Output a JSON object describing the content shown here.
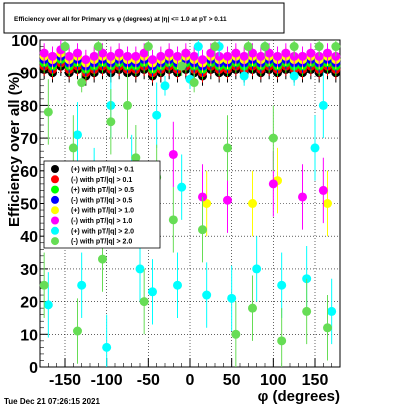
{
  "title": "Efficiency over all for Primary vs φ (degrees) at |η| <= 1.0 at pT > 0.11",
  "footer": "Tue Dec 21 07:26:15 2021",
  "chart_data": {
    "type": "scatter",
    "xlabel": "φ (degrees)",
    "ylabel": "Efficiency over all (%)",
    "xlim": [
      -180,
      180
    ],
    "ylim": [
      0,
      100
    ],
    "xticks": [
      -150,
      -100,
      -50,
      0,
      50,
      100,
      150
    ],
    "yticks": [
      0,
      10,
      20,
      30,
      40,
      50,
      60,
      70,
      80,
      90,
      100
    ],
    "grid": true,
    "legend_position": "left-middle",
    "series": [
      {
        "name": "(+) with pT/|q| > 0.1",
        "color": "#000000",
        "x": [
          -175,
          -165,
          -155,
          -145,
          -135,
          -125,
          -115,
          -105,
          -95,
          -85,
          -75,
          -65,
          -55,
          -45,
          -35,
          -25,
          -15,
          -5,
          5,
          15,
          25,
          35,
          45,
          55,
          65,
          75,
          85,
          95,
          105,
          115,
          125,
          135,
          145,
          155,
          165,
          175
        ],
        "y": [
          91,
          90,
          92,
          90,
          91,
          89,
          90,
          91,
          90,
          91,
          90,
          90,
          91,
          89,
          90,
          91,
          90,
          91,
          90,
          89,
          91,
          90,
          90,
          91,
          90,
          91,
          90,
          91,
          90,
          91,
          90,
          90,
          91,
          90,
          91,
          90
        ]
      },
      {
        "name": "(-) with pT/|q| > 0.1",
        "color": "#ff0000",
        "x": [
          -175,
          -165,
          -155,
          -145,
          -135,
          -125,
          -115,
          -105,
          -95,
          -85,
          -75,
          -65,
          -55,
          -45,
          -35,
          -25,
          -15,
          -5,
          5,
          15,
          25,
          35,
          45,
          55,
          65,
          75,
          85,
          95,
          105,
          115,
          125,
          135,
          145,
          155,
          165,
          175
        ],
        "y": [
          92,
          91,
          93,
          91,
          92,
          90,
          91,
          92,
          91,
          92,
          91,
          91,
          92,
          90,
          91,
          92,
          91,
          92,
          91,
          90,
          92,
          91,
          91,
          92,
          91,
          92,
          91,
          92,
          91,
          92,
          91,
          91,
          92,
          91,
          92,
          91
        ]
      },
      {
        "name": "(+) with pT/|q| > 0.5",
        "color": "#00ff00",
        "x": [
          -175,
          -165,
          -155,
          -145,
          -135,
          -125,
          -115,
          -105,
          -95,
          -85,
          -75,
          -65,
          -55,
          -45,
          -35,
          -25,
          -15,
          -5,
          5,
          15,
          25,
          35,
          45,
          55,
          65,
          75,
          85,
          95,
          105,
          115,
          125,
          135,
          145,
          155,
          165,
          175
        ],
        "y": [
          93,
          92,
          94,
          92,
          93,
          91,
          92,
          93,
          92,
          93,
          92,
          92,
          93,
          91,
          92,
          93,
          92,
          93,
          92,
          91,
          93,
          92,
          92,
          93,
          92,
          93,
          92,
          93,
          92,
          93,
          92,
          92,
          93,
          92,
          93,
          92
        ]
      },
      {
        "name": "(-) with pT/|q| > 0.5",
        "color": "#0000ff",
        "x": [
          -175,
          -165,
          -155,
          -145,
          -135,
          -125,
          -115,
          -105,
          -95,
          -85,
          -75,
          -65,
          -55,
          -45,
          -35,
          -25,
          -15,
          -5,
          5,
          15,
          25,
          35,
          45,
          55,
          65,
          75,
          85,
          95,
          105,
          115,
          125,
          135,
          145,
          155,
          165,
          175
        ],
        "y": [
          94,
          93,
          95,
          93,
          94,
          92,
          93,
          94,
          93,
          94,
          93,
          93,
          94,
          92,
          93,
          94,
          93,
          94,
          93,
          92,
          94,
          93,
          93,
          94,
          93,
          94,
          93,
          94,
          93,
          94,
          93,
          93,
          94,
          93,
          94,
          93
        ]
      },
      {
        "name": "(+) with pT/|q| > 1.0",
        "color": "#ffff00",
        "x": [
          -175,
          -165,
          -155,
          -145,
          -135,
          -125,
          -115,
          -105,
          -95,
          -85,
          -75,
          -65,
          -55,
          -45,
          -35,
          -25,
          -15,
          -5,
          5,
          15,
          25,
          35,
          45,
          55,
          65,
          75,
          85,
          95,
          105,
          115,
          125,
          135,
          145,
          155,
          165,
          175,
          20,
          75,
          105,
          165
        ],
        "y": [
          95,
          94,
          96,
          94,
          95,
          93,
          94,
          95,
          94,
          95,
          94,
          94,
          95,
          93,
          94,
          95,
          94,
          95,
          94,
          93,
          95,
          94,
          94,
          95,
          94,
          95,
          94,
          95,
          94,
          95,
          94,
          94,
          95,
          94,
          95,
          94,
          50,
          50,
          57,
          50
        ]
      },
      {
        "name": "(-) with pT/|q| > 1.0",
        "color": "#ff00ff",
        "x": [
          -175,
          -165,
          -155,
          -145,
          -135,
          -125,
          -115,
          -105,
          -95,
          -85,
          -75,
          -65,
          -55,
          -45,
          -35,
          -25,
          -15,
          -5,
          5,
          15,
          25,
          35,
          45,
          55,
          65,
          75,
          85,
          95,
          105,
          115,
          125,
          135,
          145,
          155,
          165,
          175,
          -20,
          15,
          45,
          100,
          135,
          160
        ],
        "y": [
          96,
          95,
          97,
          95,
          96,
          94,
          95,
          96,
          95,
          96,
          95,
          95,
          96,
          94,
          95,
          96,
          95,
          96,
          95,
          94,
          96,
          95,
          95,
          96,
          95,
          96,
          95,
          96,
          95,
          96,
          95,
          95,
          96,
          95,
          96,
          95,
          65,
          52,
          51,
          56,
          52,
          54
        ]
      },
      {
        "name": "(+) with pT/|q| > 2.0",
        "color": "#00ffff",
        "x": [
          -170,
          -150,
          -135,
          -130,
          -115,
          -100,
          -95,
          -70,
          -60,
          -45,
          -40,
          -30,
          -15,
          -10,
          0,
          10,
          20,
          35,
          50,
          65,
          80,
          90,
          110,
          125,
          140,
          150,
          160,
          170
        ],
        "y": [
          19,
          98,
          71,
          25,
          57,
          6,
          80,
          61,
          30,
          23,
          77,
          86,
          25,
          55,
          88,
          98,
          22,
          98,
          21,
          89,
          30,
          98,
          25,
          89,
          27,
          67,
          80,
          17
        ]
      },
      {
        "name": "(-) with pT/|q| > 2.0",
        "color": "#66dd55",
        "x": [
          -175,
          -170,
          -150,
          -140,
          -135,
          -130,
          -110,
          -105,
          -95,
          -75,
          -65,
          -55,
          -50,
          -40,
          -20,
          -10,
          5,
          15,
          30,
          45,
          55,
          70,
          75,
          90,
          100,
          110,
          125,
          140,
          155,
          165,
          175
        ],
        "y": [
          25,
          78,
          98,
          67,
          11,
          87,
          98,
          33,
          75,
          80,
          64,
          20,
          98,
          58,
          45,
          92,
          87,
          42,
          98,
          67,
          10,
          98,
          18,
          98,
          70,
          8,
          98,
          17,
          98,
          12,
          98
        ]
      }
    ]
  }
}
